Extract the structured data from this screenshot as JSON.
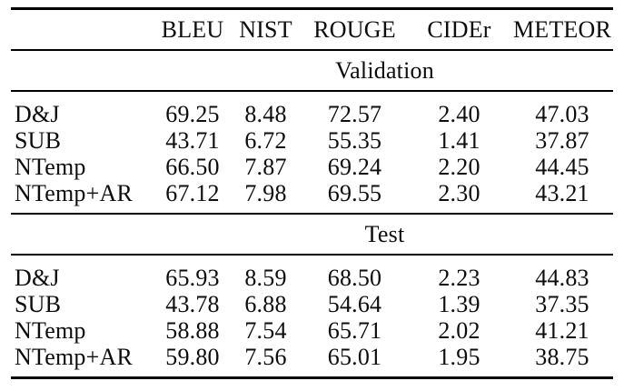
{
  "table": {
    "columns": [
      "BLEU",
      "NIST",
      "ROUGE",
      "CIDEr",
      "METEOR"
    ],
    "row_label_header": "",
    "sections": [
      {
        "title": "Validation",
        "rows": [
          {
            "label": "D&J",
            "values": [
              "69.25",
              "8.48",
              "72.57",
              "2.40",
              "47.03"
            ]
          },
          {
            "label": "SUB",
            "values": [
              "43.71",
              "6.72",
              "55.35",
              "1.41",
              "37.87"
            ]
          },
          {
            "label": "NTemp",
            "values": [
              "66.50",
              "7.87",
              "69.24",
              "2.20",
              "44.45"
            ]
          },
          {
            "label": "NTemp+AR",
            "values": [
              "67.12",
              "7.98",
              "69.55",
              "2.30",
              "43.21"
            ]
          }
        ]
      },
      {
        "title": "Test",
        "rows": [
          {
            "label": "D&J",
            "values": [
              "65.93",
              "8.59",
              "68.50",
              "2.23",
              "44.83"
            ]
          },
          {
            "label": "SUB",
            "values": [
              "43.78",
              "6.88",
              "54.64",
              "1.39",
              "37.35"
            ]
          },
          {
            "label": "NTemp",
            "values": [
              "58.88",
              "7.54",
              "65.71",
              "2.02",
              "41.21"
            ]
          },
          {
            "label": "NTemp+AR",
            "values": [
              "59.80",
              "7.56",
              "65.01",
              "1.95",
              "38.75"
            ]
          }
        ]
      }
    ],
    "colors": {
      "text": "#0d0d0d",
      "rule": "#000000",
      "background": "#ffffff"
    }
  }
}
